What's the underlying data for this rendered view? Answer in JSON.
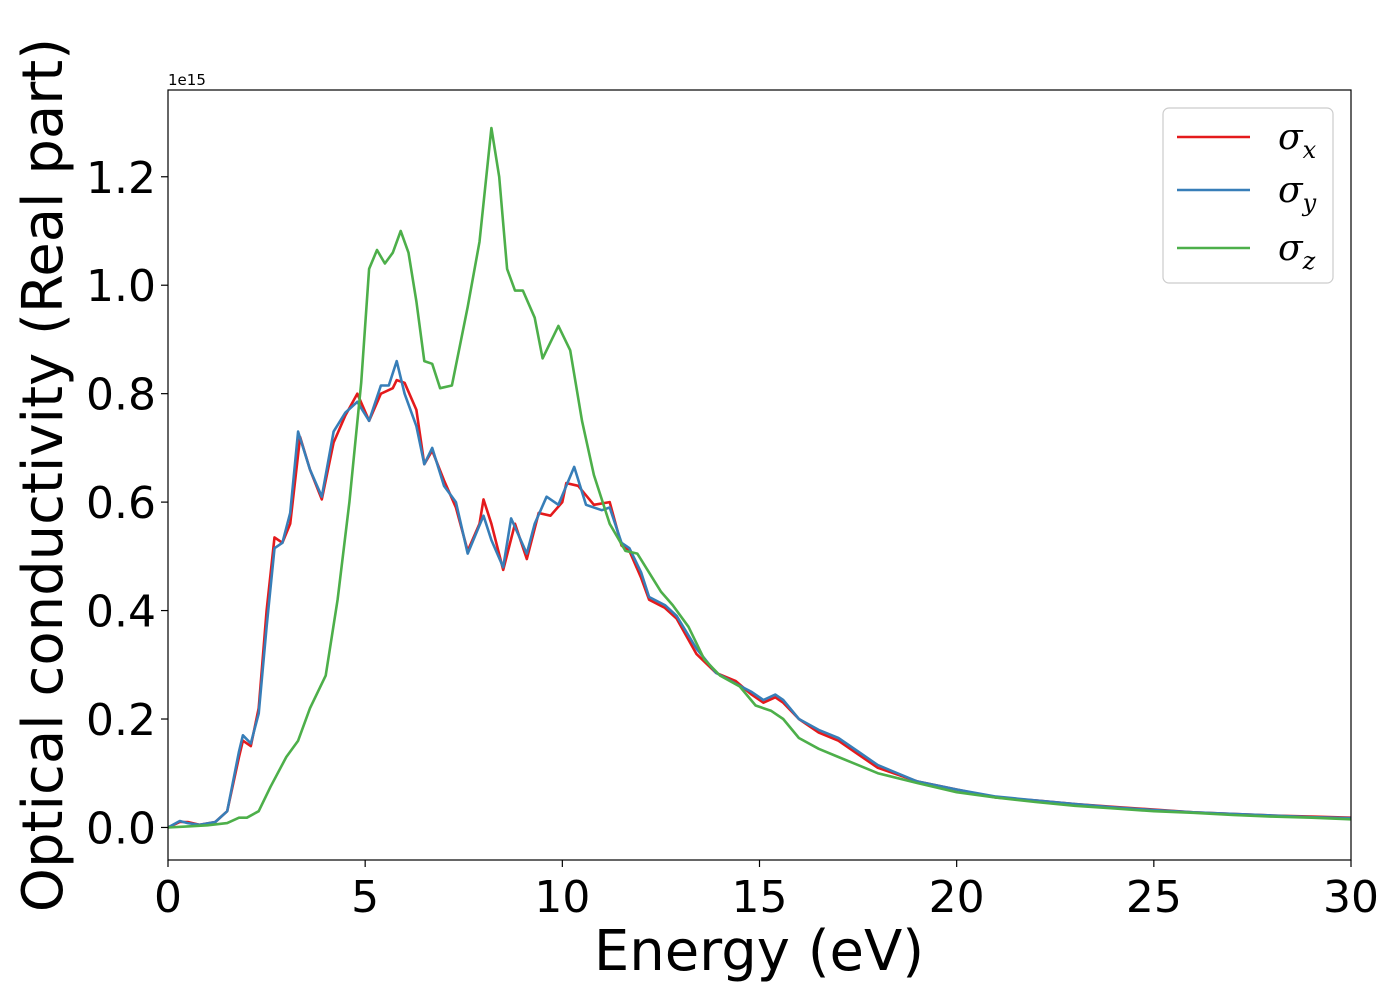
{
  "chart_data": {
    "type": "line",
    "title": "",
    "xlabel": "Energy (eV)",
    "ylabel": "Optical conductivity (Real part)",
    "y_offset_text": "1e15",
    "y_scale": 1000000000000000.0,
    "xlim": [
      0,
      30
    ],
    "ylim": [
      -0.06,
      1.36
    ],
    "x_ticks": [
      0,
      5,
      10,
      15,
      20,
      25,
      30
    ],
    "x_tick_labels": [
      "0",
      "5",
      "10",
      "15",
      "20",
      "25",
      "30"
    ],
    "y_ticks": [
      0.0,
      0.2,
      0.4,
      0.6,
      0.8,
      1.0,
      1.2
    ],
    "y_tick_labels": [
      "0.0",
      "0.2",
      "0.4",
      "0.6",
      "0.8",
      "1.0",
      "1.2"
    ],
    "grid": false,
    "legend": {
      "position": "top-right",
      "entries": [
        {
          "symbol": "σ",
          "sub": "x"
        },
        {
          "symbol": "σ",
          "sub": "y"
        },
        {
          "symbol": "σ",
          "sub": "z"
        }
      ]
    },
    "series": [
      {
        "color": "#e41a1c",
        "points": [
          [
            0,
            0
          ],
          [
            0.3,
            0.01
          ],
          [
            0.5,
            0.01
          ],
          [
            0.8,
            0.005
          ],
          [
            1.2,
            0.01
          ],
          [
            1.5,
            0.03
          ],
          [
            1.8,
            0.13
          ],
          [
            1.9,
            0.16
          ],
          [
            2.1,
            0.15
          ],
          [
            2.3,
            0.22
          ],
          [
            2.5,
            0.4
          ],
          [
            2.7,
            0.535
          ],
          [
            2.9,
            0.525
          ],
          [
            3.1,
            0.56
          ],
          [
            3.35,
            0.72
          ],
          [
            3.6,
            0.66
          ],
          [
            3.9,
            0.605
          ],
          [
            4.2,
            0.71
          ],
          [
            4.5,
            0.76
          ],
          [
            4.8,
            0.8
          ],
          [
            5.1,
            0.75
          ],
          [
            5.4,
            0.8
          ],
          [
            5.7,
            0.81
          ],
          [
            5.8,
            0.825
          ],
          [
            6.0,
            0.82
          ],
          [
            6.3,
            0.77
          ],
          [
            6.5,
            0.67
          ],
          [
            6.7,
            0.695
          ],
          [
            7.0,
            0.64
          ],
          [
            7.3,
            0.59
          ],
          [
            7.6,
            0.51
          ],
          [
            7.9,
            0.56
          ],
          [
            8.0,
            0.605
          ],
          [
            8.2,
            0.56
          ],
          [
            8.5,
            0.475
          ],
          [
            8.8,
            0.56
          ],
          [
            9.1,
            0.495
          ],
          [
            9.4,
            0.58
          ],
          [
            9.7,
            0.575
          ],
          [
            10.0,
            0.6
          ],
          [
            10.1,
            0.635
          ],
          [
            10.4,
            0.63
          ],
          [
            10.8,
            0.595
          ],
          [
            11.2,
            0.6
          ],
          [
            11.5,
            0.52
          ],
          [
            11.7,
            0.51
          ],
          [
            12.0,
            0.46
          ],
          [
            12.2,
            0.42
          ],
          [
            12.6,
            0.405
          ],
          [
            12.9,
            0.385
          ],
          [
            13.4,
            0.32
          ],
          [
            13.9,
            0.285
          ],
          [
            14.4,
            0.27
          ],
          [
            14.8,
            0.245
          ],
          [
            15.1,
            0.23
          ],
          [
            15.4,
            0.24
          ],
          [
            15.6,
            0.23
          ],
          [
            16.0,
            0.2
          ],
          [
            16.5,
            0.175
          ],
          [
            17.0,
            0.16
          ],
          [
            17.5,
            0.135
          ],
          [
            18.0,
            0.11
          ],
          [
            19.0,
            0.085
          ],
          [
            20.0,
            0.07
          ],
          [
            21.0,
            0.055
          ],
          [
            22.0,
            0.05
          ],
          [
            23.0,
            0.043
          ],
          [
            24.0,
            0.038
          ],
          [
            25.0,
            0.033
          ],
          [
            26.0,
            0.028
          ],
          [
            27.0,
            0.025
          ],
          [
            28.0,
            0.022
          ],
          [
            29.0,
            0.02
          ],
          [
            30.0,
            0.018
          ]
        ]
      },
      {
        "color": "#377eb8",
        "points": [
          [
            0,
            0
          ],
          [
            0.3,
            0.012
          ],
          [
            0.5,
            0.008
          ],
          [
            0.8,
            0.005
          ],
          [
            1.2,
            0.01
          ],
          [
            1.5,
            0.03
          ],
          [
            1.8,
            0.14
          ],
          [
            1.9,
            0.17
          ],
          [
            2.1,
            0.155
          ],
          [
            2.3,
            0.21
          ],
          [
            2.5,
            0.37
          ],
          [
            2.7,
            0.515
          ],
          [
            2.9,
            0.525
          ],
          [
            3.1,
            0.58
          ],
          [
            3.3,
            0.73
          ],
          [
            3.6,
            0.66
          ],
          [
            3.9,
            0.61
          ],
          [
            4.2,
            0.73
          ],
          [
            4.5,
            0.765
          ],
          [
            4.8,
            0.785
          ],
          [
            5.1,
            0.75
          ],
          [
            5.4,
            0.815
          ],
          [
            5.6,
            0.815
          ],
          [
            5.8,
            0.86
          ],
          [
            6.0,
            0.8
          ],
          [
            6.3,
            0.74
          ],
          [
            6.5,
            0.67
          ],
          [
            6.7,
            0.7
          ],
          [
            7.0,
            0.63
          ],
          [
            7.3,
            0.6
          ],
          [
            7.6,
            0.505
          ],
          [
            7.8,
            0.54
          ],
          [
            8.0,
            0.575
          ],
          [
            8.2,
            0.53
          ],
          [
            8.5,
            0.48
          ],
          [
            8.7,
            0.57
          ],
          [
            9.1,
            0.505
          ],
          [
            9.3,
            0.56
          ],
          [
            9.6,
            0.61
          ],
          [
            9.9,
            0.595
          ],
          [
            10.3,
            0.665
          ],
          [
            10.6,
            0.595
          ],
          [
            11.0,
            0.585
          ],
          [
            11.2,
            0.59
          ],
          [
            11.5,
            0.525
          ],
          [
            11.7,
            0.515
          ],
          [
            12.0,
            0.47
          ],
          [
            12.2,
            0.425
          ],
          [
            12.6,
            0.41
          ],
          [
            12.9,
            0.39
          ],
          [
            13.4,
            0.33
          ],
          [
            13.9,
            0.285
          ],
          [
            14.4,
            0.265
          ],
          [
            14.8,
            0.25
          ],
          [
            15.1,
            0.235
          ],
          [
            15.4,
            0.245
          ],
          [
            15.6,
            0.235
          ],
          [
            16.0,
            0.2
          ],
          [
            16.5,
            0.18
          ],
          [
            17.0,
            0.165
          ],
          [
            17.5,
            0.14
          ],
          [
            18.0,
            0.115
          ],
          [
            19.0,
            0.085
          ],
          [
            20.0,
            0.07
          ],
          [
            21.0,
            0.057
          ],
          [
            22.0,
            0.05
          ],
          [
            23.0,
            0.043
          ],
          [
            24.0,
            0.037
          ],
          [
            25.0,
            0.032
          ],
          [
            26.0,
            0.028
          ],
          [
            27.0,
            0.025
          ],
          [
            28.0,
            0.022
          ],
          [
            29.0,
            0.019
          ],
          [
            30.0,
            0.017
          ]
        ]
      },
      {
        "color": "#4daf4a",
        "points": [
          [
            0,
            0
          ],
          [
            0.5,
            0.002
          ],
          [
            1.0,
            0.004
          ],
          [
            1.5,
            0.008
          ],
          [
            1.8,
            0.018
          ],
          [
            2.0,
            0.018
          ],
          [
            2.3,
            0.03
          ],
          [
            2.6,
            0.075
          ],
          [
            3.0,
            0.13
          ],
          [
            3.3,
            0.16
          ],
          [
            3.6,
            0.22
          ],
          [
            4.0,
            0.28
          ],
          [
            4.3,
            0.42
          ],
          [
            4.6,
            0.6
          ],
          [
            4.9,
            0.82
          ],
          [
            5.1,
            1.03
          ],
          [
            5.3,
            1.065
          ],
          [
            5.5,
            1.04
          ],
          [
            5.7,
            1.06
          ],
          [
            5.9,
            1.1
          ],
          [
            6.1,
            1.06
          ],
          [
            6.3,
            0.97
          ],
          [
            6.5,
            0.86
          ],
          [
            6.7,
            0.855
          ],
          [
            6.9,
            0.81
          ],
          [
            7.2,
            0.815
          ],
          [
            7.6,
            0.96
          ],
          [
            7.9,
            1.08
          ],
          [
            8.2,
            1.29
          ],
          [
            8.4,
            1.2
          ],
          [
            8.6,
            1.03
          ],
          [
            8.8,
            0.99
          ],
          [
            9.0,
            0.99
          ],
          [
            9.3,
            0.94
          ],
          [
            9.5,
            0.865
          ],
          [
            9.9,
            0.925
          ],
          [
            10.2,
            0.88
          ],
          [
            10.5,
            0.75
          ],
          [
            10.8,
            0.65
          ],
          [
            11.2,
            0.56
          ],
          [
            11.6,
            0.51
          ],
          [
            11.9,
            0.505
          ],
          [
            12.2,
            0.47
          ],
          [
            12.5,
            0.435
          ],
          [
            12.8,
            0.41
          ],
          [
            13.2,
            0.37
          ],
          [
            13.6,
            0.31
          ],
          [
            14.0,
            0.28
          ],
          [
            14.5,
            0.26
          ],
          [
            14.9,
            0.225
          ],
          [
            15.3,
            0.215
          ],
          [
            15.6,
            0.2
          ],
          [
            16.0,
            0.165
          ],
          [
            16.5,
            0.145
          ],
          [
            17.0,
            0.13
          ],
          [
            17.5,
            0.115
          ],
          [
            18.0,
            0.1
          ],
          [
            19.0,
            0.082
          ],
          [
            20.0,
            0.065
          ],
          [
            21.0,
            0.055
          ],
          [
            22.0,
            0.047
          ],
          [
            23.0,
            0.04
          ],
          [
            24.0,
            0.035
          ],
          [
            25.0,
            0.03
          ],
          [
            26.0,
            0.027
          ],
          [
            27.0,
            0.023
          ],
          [
            28.0,
            0.02
          ],
          [
            29.0,
            0.018
          ],
          [
            30.0,
            0.015
          ]
        ]
      }
    ]
  }
}
